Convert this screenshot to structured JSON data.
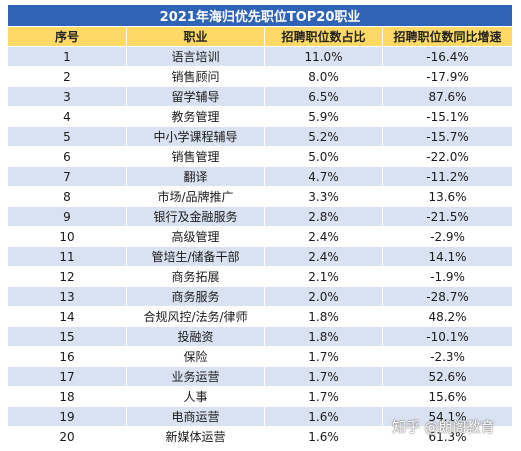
{
  "table": {
    "title": "2021年海归优先职位TOP20职业",
    "headers": [
      "序号",
      "职业",
      "招聘职位数占比",
      "招聘职位数同比增速"
    ],
    "rows": [
      [
        "1",
        "语言培训",
        "11.0%",
        "-16.4%"
      ],
      [
        "2",
        "销售顾问",
        "8.0%",
        "-17.9%"
      ],
      [
        "3",
        "留学辅导",
        "6.5%",
        "87.6%"
      ],
      [
        "4",
        "教务管理",
        "5.9%",
        "-15.1%"
      ],
      [
        "5",
        "中小学课程辅导",
        "5.2%",
        "-15.7%"
      ],
      [
        "6",
        "销售管理",
        "5.0%",
        "-22.0%"
      ],
      [
        "7",
        "翻译",
        "4.7%",
        "-11.2%"
      ],
      [
        "8",
        "市场/品牌推广",
        "3.3%",
        "13.6%"
      ],
      [
        "9",
        "银行及金融服务",
        "2.8%",
        "-21.5%"
      ],
      [
        "10",
        "高级管理",
        "2.4%",
        "-2.9%"
      ],
      [
        "11",
        "管培生/储备干部",
        "2.4%",
        "14.1%"
      ],
      [
        "12",
        "商务拓展",
        "2.1%",
        "-1.9%"
      ],
      [
        "13",
        "商务服务",
        "2.0%",
        "-28.7%"
      ],
      [
        "14",
        "合规风控/法务/律师",
        "1.8%",
        "48.2%"
      ],
      [
        "15",
        "投融资",
        "1.8%",
        "-10.1%"
      ],
      [
        "16",
        "保险",
        "1.7%",
        "-2.3%"
      ],
      [
        "17",
        "业务运营",
        "1.7%",
        "52.6%"
      ],
      [
        "18",
        "人事",
        "1.7%",
        "15.6%"
      ],
      [
        "19",
        "电商运营",
        "1.6%",
        "54.1%"
      ],
      [
        "20",
        "新媒体运营",
        "1.6%",
        "61.3%"
      ]
    ]
  },
  "watermark": "知乎 @朗阁教育",
  "colors": {
    "title_bg": "#2f63b5",
    "header_bg": "#ffd966",
    "stripe_bg": "#d9e2f1"
  }
}
